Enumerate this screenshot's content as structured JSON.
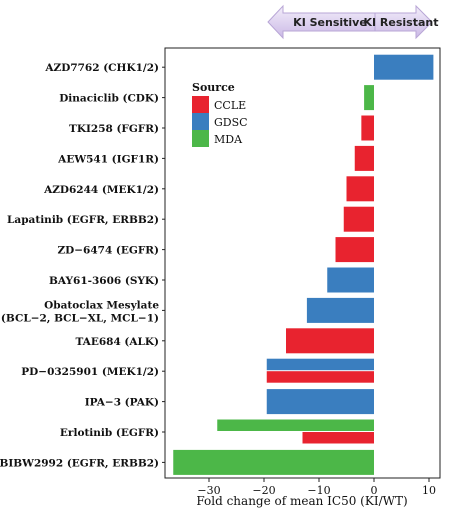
{
  "chart_data": {
    "type": "bar",
    "orientation": "horizontal",
    "xlabel": "Fold change of mean IC50 (KI/WT)",
    "xlim": [
      -38,
      12
    ],
    "xticks": [
      -30,
      -20,
      -10,
      0,
      10
    ],
    "colors": {
      "CCLE": "#e8232f",
      "GDSC": "#3a7ebf",
      "MDA": "#4cb748"
    },
    "legend": {
      "title": "Source",
      "entries": [
        "CCLE",
        "GDSC",
        "MDA"
      ],
      "placement": "top-left"
    },
    "header_arrow": {
      "left": "KI Sensitive",
      "right": "KI Resistant"
    },
    "categories": [
      {
        "label": [
          "AZD7762 (CHK1/2)"
        ],
        "bars": [
          {
            "source": "GDSC",
            "value": 10.8
          }
        ]
      },
      {
        "label": [
          "Dinaciclib (CDK)"
        ],
        "bars": [
          {
            "source": "MDA",
            "value": -1.8
          }
        ]
      },
      {
        "label": [
          "TKI258 (FGFR)"
        ],
        "bars": [
          {
            "source": "CCLE",
            "value": -2.3
          }
        ]
      },
      {
        "label": [
          "AEW541 (IGF1R)"
        ],
        "bars": [
          {
            "source": "CCLE",
            "value": -3.5
          }
        ]
      },
      {
        "label": [
          "AZD6244 (MEK1/2)"
        ],
        "bars": [
          {
            "source": "CCLE",
            "value": -5.0
          }
        ]
      },
      {
        "label": [
          "Lapatinib (EGFR, ERBB2)"
        ],
        "bars": [
          {
            "source": "CCLE",
            "value": -5.5
          }
        ]
      },
      {
        "label": [
          "ZD−6474 (EGFR)"
        ],
        "bars": [
          {
            "source": "CCLE",
            "value": -7.0
          }
        ]
      },
      {
        "label": [
          "BAY61-3606 (SYK)"
        ],
        "bars": [
          {
            "source": "GDSC",
            "value": -8.5
          }
        ]
      },
      {
        "label": [
          "Obatoclax Mesylate",
          "(BCL−2, BCL−XL, MCL−1)"
        ],
        "bars": [
          {
            "source": "GDSC",
            "value": -12.2
          }
        ]
      },
      {
        "label": [
          "TAE684 (ALK)"
        ],
        "bars": [
          {
            "source": "CCLE",
            "value": -16.0
          }
        ]
      },
      {
        "label": [
          "PD−0325901 (MEK1/2)"
        ],
        "bars": [
          {
            "source": "GDSC",
            "value": -19.5
          },
          {
            "source": "CCLE",
            "value": -19.5
          }
        ]
      },
      {
        "label": [
          "IPA−3 (PAK)"
        ],
        "bars": [
          {
            "source": "GDSC",
            "value": -19.5
          }
        ]
      },
      {
        "label": [
          "Erlotinib (EGFR)"
        ],
        "bars": [
          {
            "source": "MDA",
            "value": -28.5
          },
          {
            "source": "CCLE",
            "value": -13.0
          }
        ]
      },
      {
        "label": [
          "BIBW2992 (EGFR, ERBB2)"
        ],
        "bars": [
          {
            "source": "MDA",
            "value": -36.5
          }
        ]
      }
    ]
  }
}
